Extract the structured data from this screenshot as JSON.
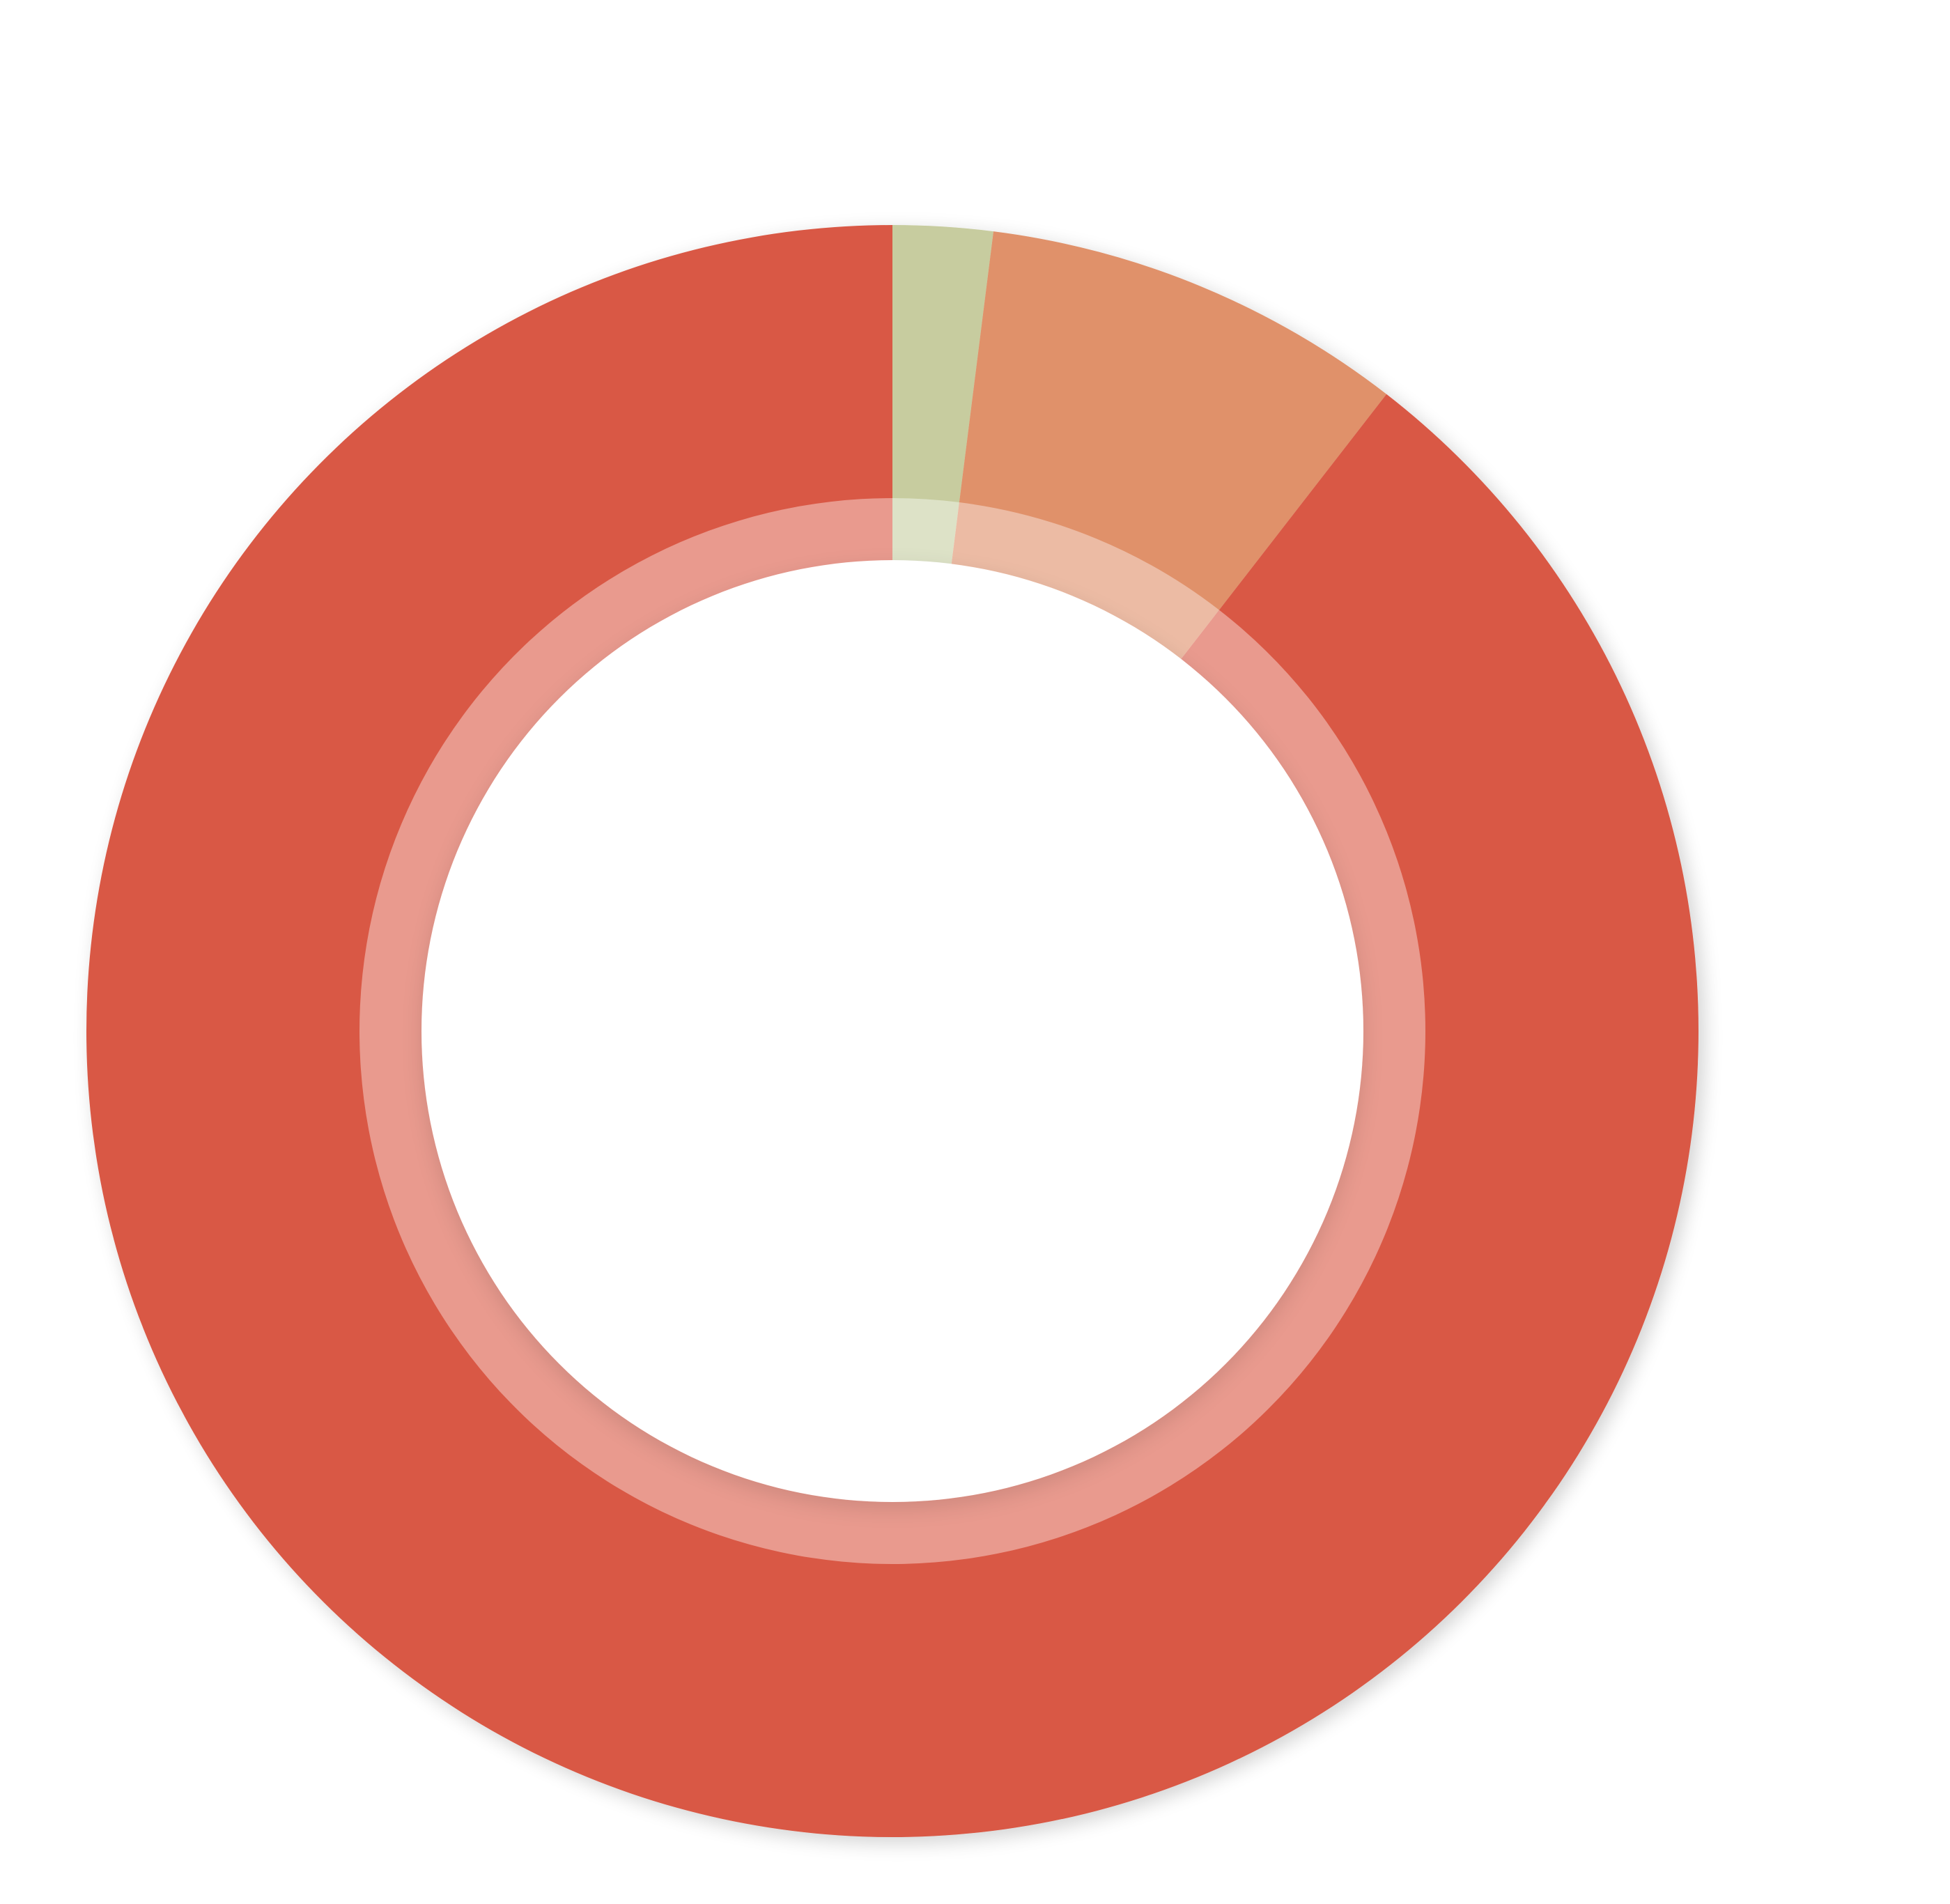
{
  "chart_data": {
    "type": "pie",
    "variant": "donut",
    "title": "",
    "start_angle_deg": 0,
    "direction": "clockwise",
    "slices": [
      {
        "value": 2.0,
        "color": "#c7cc9f",
        "inner_color": "#dde2c7"
      },
      {
        "value": 8.5,
        "color": "#e0916a",
        "inner_color": "#ecbba4"
      },
      {
        "value": 89.5,
        "color": "#d95945",
        "inner_color": "#e99a8e"
      }
    ],
    "legend": "none",
    "shadow": true
  }
}
